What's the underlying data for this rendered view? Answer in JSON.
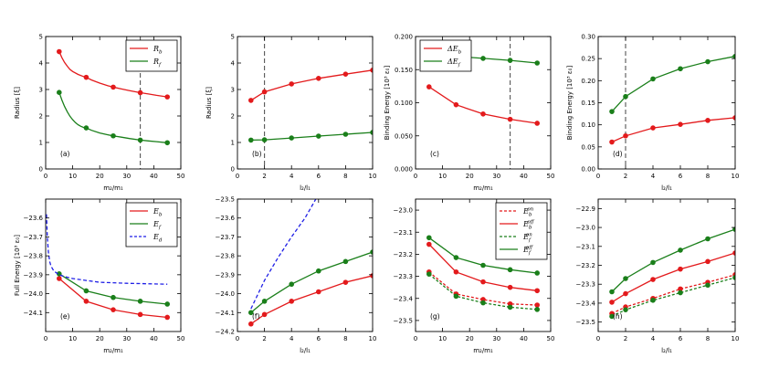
{
  "colors": {
    "red": "#e31a1c",
    "green": "#1a7f1a",
    "blue": "#1f1fe6",
    "vline": "#555555"
  },
  "chart_data": [
    {
      "id": "a",
      "type": "line",
      "panel_label": "(a)",
      "xlabel": "m₂/m₁",
      "ylabel": "Radius [ξ]",
      "xlim": [
        0,
        50
      ],
      "ylim": [
        0,
        5
      ],
      "xticks": [
        0,
        10,
        20,
        30,
        40,
        50
      ],
      "yticks": [
        0,
        1,
        2,
        3,
        4,
        5
      ],
      "vline": 35,
      "legend": "top-right",
      "series": [
        {
          "name": "R_b",
          "legend_main": "R",
          "legend_sub": "b",
          "color": "red",
          "dash": false,
          "x": [
            5,
            15,
            25,
            35,
            45
          ],
          "y": [
            4.43,
            3.46,
            3.09,
            2.88,
            2.72
          ],
          "curve_x": [
            4.5,
            5,
            6,
            7,
            8,
            9,
            10,
            12,
            14,
            15,
            17,
            20,
            23,
            25,
            28,
            31,
            35,
            38,
            41,
            45
          ],
          "curve_y": [
            4.5,
            4.43,
            4.2,
            4.02,
            3.88,
            3.76,
            3.68,
            3.57,
            3.49,
            3.46,
            3.36,
            3.24,
            3.14,
            3.09,
            3.02,
            2.96,
            2.88,
            2.83,
            2.78,
            2.72
          ]
        },
        {
          "name": "R_f",
          "legend_main": "R",
          "legend_sub": "f",
          "color": "green",
          "dash": false,
          "x": [
            5,
            15,
            25,
            35,
            45
          ],
          "y": [
            2.89,
            1.55,
            1.25,
            1.09,
            0.99
          ],
          "curve_x": [
            5,
            6,
            7,
            8,
            9,
            10,
            11,
            12,
            13,
            14,
            15,
            17,
            20,
            23,
            25,
            28,
            31,
            35,
            38,
            41,
            45
          ],
          "curve_y": [
            2.89,
            2.6,
            2.36,
            2.16,
            1.99,
            1.86,
            1.75,
            1.67,
            1.61,
            1.57,
            1.55,
            1.46,
            1.36,
            1.29,
            1.25,
            1.2,
            1.15,
            1.09,
            1.06,
            1.03,
            0.99
          ]
        }
      ]
    },
    {
      "id": "b",
      "type": "line",
      "panel_label": "(b)",
      "xlabel": "l₂/l₁",
      "ylabel": "Radius [ξ]",
      "xlim": [
        0,
        10
      ],
      "ylim": [
        0,
        5
      ],
      "xticks": [
        0,
        2,
        4,
        6,
        8,
        10
      ],
      "yticks": [
        0,
        1,
        2,
        3,
        4,
        5
      ],
      "vline": 2,
      "legend": "none",
      "series": [
        {
          "name": "R_b",
          "color": "red",
          "dash": false,
          "x": [
            1,
            2,
            4,
            6,
            8,
            10
          ],
          "y": [
            2.59,
            2.91,
            3.21,
            3.42,
            3.58,
            3.73
          ]
        },
        {
          "name": "R_f",
          "color": "green",
          "dash": false,
          "x": [
            1,
            2,
            4,
            6,
            8,
            10
          ],
          "y": [
            1.09,
            1.1,
            1.17,
            1.24,
            1.31,
            1.38
          ]
        }
      ]
    },
    {
      "id": "c",
      "type": "line",
      "panel_label": "(c)",
      "xlabel": "m₂/m₁",
      "ylabel": "Binding Energy [10³ ε₀]",
      "xlim": [
        0,
        50
      ],
      "ylim": [
        0,
        0.2
      ],
      "xticks": [
        0,
        10,
        20,
        30,
        40,
        50
      ],
      "yticks": [
        0,
        0.05,
        0.1,
        0.15,
        0.2
      ],
      "ytick_labels": [
        "0.000",
        "0.050",
        "0.100",
        "0.150",
        "0.200"
      ],
      "vline": 35,
      "legend": "top-left",
      "series": [
        {
          "name": "ΔE_b",
          "legend_main": "ΔE",
          "legend_sub": "b",
          "color": "red",
          "dash": false,
          "x": [
            5,
            15,
            25,
            35,
            45
          ],
          "y": [
            0.124,
            0.097,
            0.083,
            0.075,
            0.069
          ]
        },
        {
          "name": "ΔE_f",
          "legend_main": "ΔE",
          "legend_sub": "f",
          "color": "green",
          "dash": false,
          "x": [
            5,
            15,
            25,
            35,
            45
          ],
          "y": [
            0.165,
            0.17,
            0.167,
            0.164,
            0.16
          ]
        }
      ]
    },
    {
      "id": "d",
      "type": "line",
      "panel_label": "(d)",
      "xlabel": "l₂/l₁",
      "ylabel": "Binding Energy [10³ ε₀]",
      "xlim": [
        0,
        10
      ],
      "ylim": [
        0,
        0.3
      ],
      "xticks": [
        0,
        2,
        4,
        6,
        8,
        10
      ],
      "yticks": [
        0,
        0.05,
        0.1,
        0.15,
        0.2,
        0.25,
        0.3
      ],
      "ytick_labels": [
        "0.00",
        "0.05",
        "0.10",
        "0.15",
        "0.20",
        "0.25",
        "0.30"
      ],
      "vline": 2,
      "legend": "none",
      "series": [
        {
          "name": "ΔE_b",
          "color": "red",
          "dash": false,
          "x": [
            1,
            2,
            4,
            6,
            8,
            10
          ],
          "y": [
            0.061,
            0.075,
            0.093,
            0.101,
            0.11,
            0.116
          ]
        },
        {
          "name": "ΔE_f",
          "color": "green",
          "dash": false,
          "x": [
            1,
            2,
            4,
            6,
            8,
            10
          ],
          "y": [
            0.13,
            0.164,
            0.204,
            0.227,
            0.243,
            0.255
          ]
        }
      ]
    },
    {
      "id": "e",
      "type": "line",
      "panel_label": "(e)",
      "xlabel": "m₂/m₁",
      "ylabel": "Full Energy [10³ ε₀]",
      "xlim": [
        0,
        50
      ],
      "ylim": [
        -24.2,
        -23.5
      ],
      "xticks": [
        0,
        10,
        20,
        30,
        40,
        50
      ],
      "yticks": [
        -24.1,
        -24.0,
        -23.9,
        -23.8,
        -23.7,
        -23.6
      ],
      "ytick_labels": [
        "−24.1",
        "−24.0",
        "−23.9",
        "−23.8",
        "−23.7",
        "−23.6"
      ],
      "legend": "top-right",
      "series": [
        {
          "name": "E_b",
          "legend_main": "E",
          "legend_sub": "b",
          "color": "red",
          "dash": false,
          "x": [
            5,
            15,
            25,
            35,
            45
          ],
          "y": [
            -23.92,
            -24.04,
            -24.085,
            -24.11,
            -24.125
          ]
        },
        {
          "name": "E_f",
          "legend_main": "E",
          "legend_sub": "f",
          "color": "green",
          "dash": false,
          "x": [
            5,
            15,
            25,
            35,
            45
          ],
          "y": [
            -23.895,
            -23.985,
            -24.02,
            -24.04,
            -24.055
          ]
        },
        {
          "name": "E_d",
          "legend_main": "E",
          "legend_sub": "d",
          "color": "blue",
          "dash": true,
          "markers": false,
          "x": [
            0.3,
            0.6,
            1,
            1.5,
            2,
            3,
            4,
            5,
            7,
            10,
            15,
            20,
            30,
            45
          ],
          "y": [
            -23.58,
            -23.7,
            -23.78,
            -23.83,
            -23.855,
            -23.88,
            -23.89,
            -23.9,
            -23.91,
            -23.92,
            -23.93,
            -23.94,
            -23.945,
            -23.95
          ]
        }
      ]
    },
    {
      "id": "f",
      "type": "line",
      "panel_label": "(f)",
      "xlabel": "l₂/l₁",
      "ylabel": "",
      "xlim": [
        0,
        10
      ],
      "ylim": [
        -24.2,
        -23.5
      ],
      "xticks": [
        0,
        2,
        4,
        6,
        8,
        10
      ],
      "yticks": [
        -24.2,
        -24.1,
        -24.0,
        -23.9,
        -23.8,
        -23.7,
        -23.6,
        -23.5
      ],
      "ytick_labels": [
        "−24.2",
        "−24.1",
        "−24.0",
        "−23.9",
        "−23.8",
        "−23.7",
        "−23.6",
        "−23.5"
      ],
      "legend": "none",
      "series": [
        {
          "name": "E_b",
          "color": "red",
          "dash": false,
          "x": [
            1,
            2,
            4,
            6,
            8,
            10
          ],
          "y": [
            -24.16,
            -24.11,
            -24.04,
            -23.99,
            -23.94,
            -23.905
          ]
        },
        {
          "name": "E_f",
          "color": "green",
          "dash": false,
          "x": [
            1,
            2,
            4,
            6,
            8,
            10
          ],
          "y": [
            -24.1,
            -24.04,
            -23.95,
            -23.88,
            -23.83,
            -23.78
          ]
        },
        {
          "name": "E_d",
          "color": "blue",
          "dash": true,
          "markers": false,
          "x": [
            1,
            2,
            3,
            4,
            5,
            5.8
          ],
          "y": [
            -24.08,
            -23.93,
            -23.81,
            -23.7,
            -23.6,
            -23.5
          ]
        }
      ]
    },
    {
      "id": "g",
      "type": "line",
      "panel_label": "(g)",
      "xlabel": "m₂/m₁",
      "ylabel": "",
      "xlim": [
        0,
        50
      ],
      "ylim": [
        -23.55,
        -22.95
      ],
      "xticks": [
        0,
        10,
        20,
        30,
        40,
        50
      ],
      "yticks": [
        -23.5,
        -23.4,
        -23.3,
        -23.2,
        -23.1,
        -23.0
      ],
      "ytick_labels": [
        "−23.5",
        "−23.4",
        "−23.3",
        "−23.2",
        "−23.1",
        "−23.0"
      ],
      "legend": "top-right",
      "series": [
        {
          "name": "E_b^on",
          "legend_main": "E",
          "legend_sub": "b",
          "legend_sup": "on",
          "color": "red",
          "dash": true,
          "x": [
            5,
            15,
            25,
            35,
            45
          ],
          "y": [
            -23.28,
            -23.38,
            -23.405,
            -23.425,
            -23.43
          ]
        },
        {
          "name": "E_b^off",
          "legend_main": "E",
          "legend_sub": "b",
          "legend_sup": "off",
          "color": "red",
          "dash": false,
          "x": [
            5,
            15,
            25,
            35,
            45
          ],
          "y": [
            -23.155,
            -23.28,
            -23.325,
            -23.35,
            -23.365
          ]
        },
        {
          "name": "E_f^on",
          "legend_main": "E",
          "legend_sub": "f",
          "legend_sup": "on",
          "color": "green",
          "dash": true,
          "x": [
            5,
            15,
            25,
            35,
            45
          ],
          "y": [
            -23.29,
            -23.39,
            -23.42,
            -23.44,
            -23.45
          ]
        },
        {
          "name": "E_f^off",
          "legend_main": "E",
          "legend_sub": "f",
          "legend_sup": "off",
          "color": "green",
          "dash": false,
          "x": [
            5,
            15,
            25,
            35,
            45
          ],
          "y": [
            -23.125,
            -23.215,
            -23.25,
            -23.27,
            -23.285
          ]
        }
      ]
    },
    {
      "id": "h",
      "type": "line",
      "panel_label": "(h)",
      "xlabel": "l₂/l₁",
      "ylabel": "",
      "xlim": [
        0,
        10
      ],
      "ylim": [
        -23.55,
        -22.85
      ],
      "xticks": [
        0,
        2,
        4,
        6,
        8,
        10
      ],
      "yticks": [
        -23.5,
        -23.4,
        -23.3,
        -23.2,
        -23.1,
        -23.0,
        -22.9
      ],
      "ytick_labels": [
        "−23.5",
        "−23.4",
        "−23.3",
        "−23.2",
        "−23.1",
        "−23.0",
        "−22.9"
      ],
      "legend": "none",
      "series": [
        {
          "name": "E_b^on",
          "color": "red",
          "dash": true,
          "x": [
            1,
            2,
            4,
            6,
            8,
            10
          ],
          "y": [
            -23.455,
            -23.42,
            -23.375,
            -23.325,
            -23.29,
            -23.25
          ]
        },
        {
          "name": "E_b^off",
          "color": "red",
          "dash": false,
          "x": [
            1,
            2,
            4,
            6,
            8,
            10
          ],
          "y": [
            -23.395,
            -23.35,
            -23.275,
            -23.22,
            -23.18,
            -23.135
          ]
        },
        {
          "name": "E_f^on",
          "color": "green",
          "dash": true,
          "x": [
            1,
            2,
            4,
            6,
            8,
            10
          ],
          "y": [
            -23.47,
            -23.435,
            -23.385,
            -23.345,
            -23.305,
            -23.265
          ]
        },
        {
          "name": "E_f^off",
          "color": "green",
          "dash": false,
          "x": [
            1,
            2,
            4,
            6,
            8,
            10
          ],
          "y": [
            -23.34,
            -23.27,
            -23.185,
            -23.12,
            -23.06,
            -23.01
          ]
        }
      ]
    }
  ]
}
